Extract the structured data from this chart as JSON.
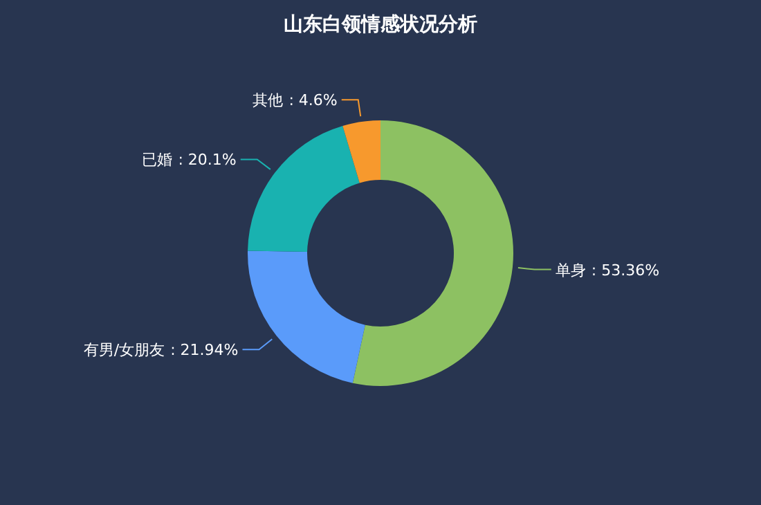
{
  "chart_data": {
    "type": "donut",
    "title": "山东白领情感状况分析",
    "categories": [
      "单身",
      "有男/女朋友",
      "已婚",
      "其他"
    ],
    "values": [
      53.36,
      21.94,
      20.1,
      4.6
    ],
    "colors": [
      "#8dc162",
      "#5a9bfa",
      "#19b2b0",
      "#f7992d"
    ],
    "value_labels": [
      ": 53.36%",
      ": 21.94%",
      ": 20.1%",
      ": 4.6%"
    ]
  }
}
